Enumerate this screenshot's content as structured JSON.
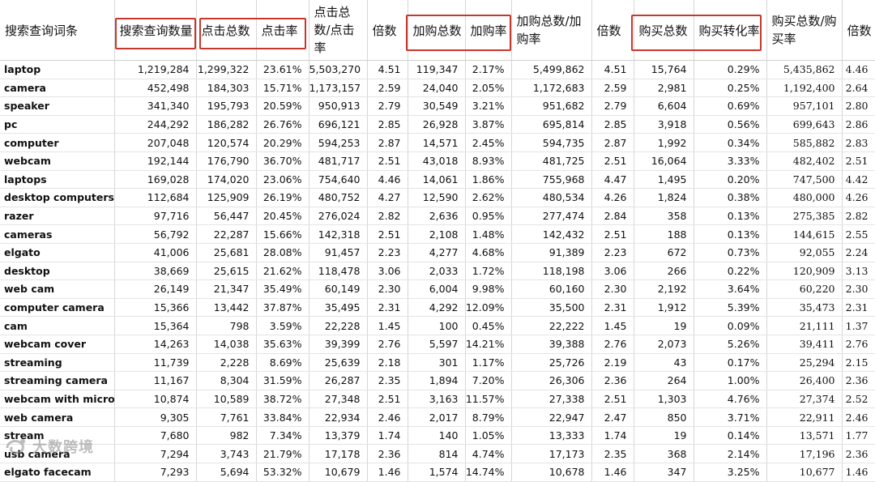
{
  "headers": [
    "搜索查询词条",
    "搜索查询数量",
    "点击总数",
    "点击率",
    "点击总数/点击率",
    "倍数",
    "加购总数",
    "加购率",
    "加购总数/加购率",
    "倍数",
    "购买总数",
    "购买转化率",
    "购买总数/购买率",
    "倍数"
  ],
  "rows": [
    [
      "laptop",
      "1,219,284",
      "1,299,322",
      "23.61%",
      "5,503,270",
      "4.51",
      "119,347",
      "2.17%",
      "5,499,862",
      "4.51",
      "15,764",
      "0.29%",
      "5,435,862",
      "4.46"
    ],
    [
      "camera",
      "452,498",
      "184,303",
      "15.71%",
      "1,173,157",
      "2.59",
      "24,040",
      "2.05%",
      "1,172,683",
      "2.59",
      "2,981",
      "0.25%",
      "1,192,400",
      "2.64"
    ],
    [
      "speaker",
      "341,340",
      "195,793",
      "20.59%",
      "950,913",
      "2.79",
      "30,549",
      "3.21%",
      "951,682",
      "2.79",
      "6,604",
      "0.69%",
      "957,101",
      "2.80"
    ],
    [
      "pc",
      "244,292",
      "186,282",
      "26.76%",
      "696,121",
      "2.85",
      "26,928",
      "3.87%",
      "695,814",
      "2.85",
      "3,918",
      "0.56%",
      "699,643",
      "2.86"
    ],
    [
      "computer",
      "207,048",
      "120,574",
      "20.29%",
      "594,253",
      "2.87",
      "14,571",
      "2.45%",
      "594,735",
      "2.87",
      "1,992",
      "0.34%",
      "585,882",
      "2.83"
    ],
    [
      "webcam",
      "192,144",
      "176,790",
      "36.70%",
      "481,717",
      "2.51",
      "43,018",
      "8.93%",
      "481,725",
      "2.51",
      "16,064",
      "3.33%",
      "482,402",
      "2.51"
    ],
    [
      "laptops",
      "169,028",
      "174,020",
      "23.06%",
      "754,640",
      "4.46",
      "14,061",
      "1.86%",
      "755,968",
      "4.47",
      "1,495",
      "0.20%",
      "747,500",
      "4.42"
    ],
    [
      "desktop computers",
      "112,684",
      "125,909",
      "26.19%",
      "480,752",
      "4.27",
      "12,590",
      "2.62%",
      "480,534",
      "4.26",
      "1,824",
      "0.38%",
      "480,000",
      "4.26"
    ],
    [
      "razer",
      "97,716",
      "56,447",
      "20.45%",
      "276,024",
      "2.82",
      "2,636",
      "0.95%",
      "277,474",
      "2.84",
      "358",
      "0.13%",
      "275,385",
      "2.82"
    ],
    [
      "cameras",
      "56,792",
      "22,287",
      "15.66%",
      "142,318",
      "2.51",
      "2,108",
      "1.48%",
      "142,432",
      "2.51",
      "188",
      "0.13%",
      "144,615",
      "2.55"
    ],
    [
      "elgato",
      "41,006",
      "25,681",
      "28.08%",
      "91,457",
      "2.23",
      "4,277",
      "4.68%",
      "91,389",
      "2.23",
      "672",
      "0.73%",
      "92,055",
      "2.24"
    ],
    [
      "desktop",
      "38,669",
      "25,615",
      "21.62%",
      "118,478",
      "3.06",
      "2,033",
      "1.72%",
      "118,198",
      "3.06",
      "266",
      "0.22%",
      "120,909",
      "3.13"
    ],
    [
      "web cam",
      "26,149",
      "21,347",
      "35.49%",
      "60,149",
      "2.30",
      "6,004",
      "9.98%",
      "60,160",
      "2.30",
      "2,192",
      "3.64%",
      "60,220",
      "2.30"
    ],
    [
      "computer camera",
      "15,366",
      "13,442",
      "37.87%",
      "35,495",
      "2.31",
      "4,292",
      "12.09%",
      "35,500",
      "2.31",
      "1,912",
      "5.39%",
      "35,473",
      "2.31"
    ],
    [
      "cam",
      "15,364",
      "798",
      "3.59%",
      "22,228",
      "1.45",
      "100",
      "0.45%",
      "22,222",
      "1.45",
      "19",
      "0.09%",
      "21,111",
      "1.37"
    ],
    [
      "webcam cover",
      "14,263",
      "14,038",
      "35.63%",
      "39,399",
      "2.76",
      "5,597",
      "14.21%",
      "39,388",
      "2.76",
      "2,073",
      "5.26%",
      "39,411",
      "2.76"
    ],
    [
      "streaming",
      "11,739",
      "2,228",
      "8.69%",
      "25,639",
      "2.18",
      "301",
      "1.17%",
      "25,726",
      "2.19",
      "43",
      "0.17%",
      "25,294",
      "2.15"
    ],
    [
      "streaming camera",
      "11,167",
      "8,304",
      "31.59%",
      "26,287",
      "2.35",
      "1,894",
      "7.20%",
      "26,306",
      "2.36",
      "264",
      "1.00%",
      "26,400",
      "2.36"
    ],
    [
      "webcam with microph",
      "10,874",
      "10,589",
      "38.72%",
      "27,348",
      "2.51",
      "3,163",
      "11.57%",
      "27,338",
      "2.51",
      "1,303",
      "4.76%",
      "27,374",
      "2.52"
    ],
    [
      "web camera",
      "9,305",
      "7,761",
      "33.84%",
      "22,934",
      "2.46",
      "2,017",
      "8.79%",
      "22,947",
      "2.47",
      "850",
      "3.71%",
      "22,911",
      "2.46"
    ],
    [
      "stream",
      "7,680",
      "982",
      "7.34%",
      "13,379",
      "1.74",
      "140",
      "1.05%",
      "13,333",
      "1.74",
      "19",
      "0.14%",
      "13,571",
      "1.77"
    ],
    [
      "usb camera",
      "7,294",
      "3,743",
      "21.79%",
      "17,178",
      "2.36",
      "814",
      "4.74%",
      "17,173",
      "2.35",
      "368",
      "2.14%",
      "17,196",
      "2.36"
    ],
    [
      "elgato facecam",
      "7,293",
      "5,694",
      "53.32%",
      "10,679",
      "1.46",
      "1,574",
      "14.74%",
      "10,678",
      "1.46",
      "347",
      "3.25%",
      "10,677",
      "1.46"
    ]
  ],
  "watermark": "大数跨境",
  "highlight_color": "#c8372d"
}
